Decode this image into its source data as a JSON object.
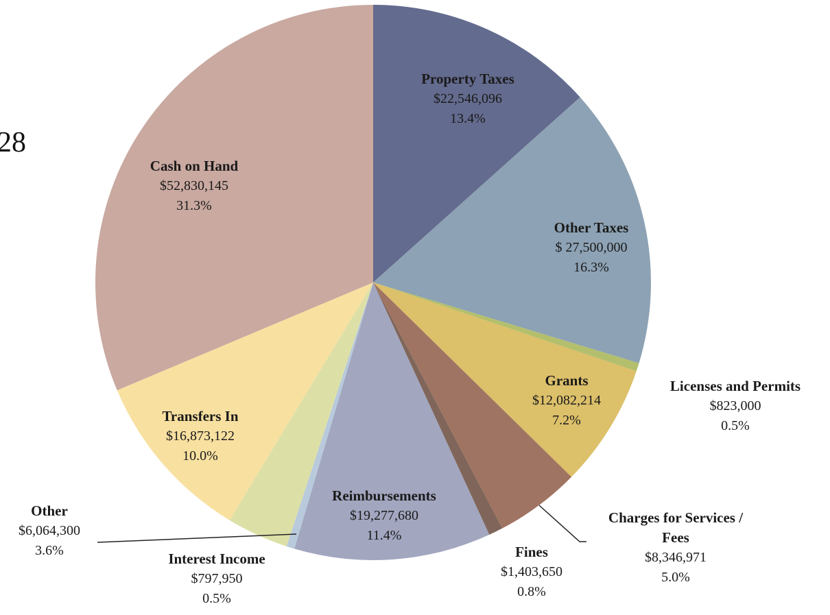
{
  "chart_data": {
    "type": "pie",
    "title": "28",
    "categories": [
      "Property Taxes",
      "Other Taxes",
      "Licenses and Permits",
      "Grants",
      "Charges for Services / Fees",
      "Fines",
      "Reimbursements",
      "Interest Income",
      "Other",
      "Transfers In",
      "Cash on Hand"
    ],
    "values": [
      22546096,
      27500000,
      823000,
      12082214,
      8346971,
      1403650,
      19277680,
      797950,
      6064300,
      16873122,
      52830145
    ],
    "value_labels": [
      "$22,546,096",
      "$ 27,500,000",
      "$823,000",
      "$12,082,214",
      "$8,346,971",
      "$1,403,650",
      "$19,277,680",
      "$797,950",
      "$6,064,300",
      "$16,873,122",
      "$52,830,145"
    ],
    "percents": [
      13.4,
      16.3,
      0.5,
      7.2,
      5.0,
      0.8,
      11.4,
      0.5,
      3.6,
      10.0,
      31.3
    ],
    "percent_labels": [
      "13.4%",
      "16.3%",
      "0.5%",
      "7.2%",
      "5.0%",
      "0.8%",
      "11.4%",
      "0.5%",
      "3.6%",
      "10.0%",
      "31.3%"
    ],
    "colors": [
      "#636b8e",
      "#8da2b4",
      "#b3bf6c",
      "#dcc06a",
      "#a07462",
      "#80665a",
      "#a2a6bf",
      "#b8cadb",
      "#dde0a6",
      "#f8e0a0",
      "#c9a9a0"
    ]
  }
}
